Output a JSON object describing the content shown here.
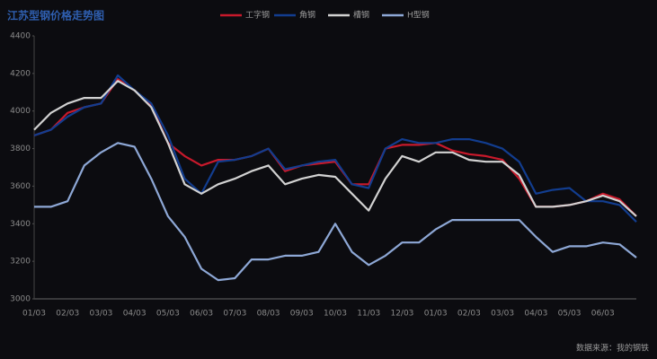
{
  "chart_data": {
    "type": "line",
    "title": "江苏型钢价格走势图",
    "source": "数据来源：我的钢铁",
    "categories": [
      "01/03",
      null,
      "02/03",
      null,
      "03/03",
      null,
      "04/03",
      null,
      "05/03",
      null,
      "06/03",
      null,
      "07/03",
      null,
      "08/03",
      null,
      "09/03",
      null,
      "10/03",
      null,
      "11/03",
      null,
      "12/03",
      null,
      "01/03",
      null,
      "02/03",
      null,
      "03/03",
      null,
      "04/03",
      null,
      "05/03",
      null,
      "06/03",
      null,
      null
    ],
    "series": [
      {
        "name": "工字钢",
        "color": "#c8192b",
        "values": [
          3870,
          3900,
          3990,
          4020,
          4040,
          4170,
          4110,
          4030,
          3830,
          3760,
          3710,
          3740,
          3740,
          3760,
          3800,
          3680,
          3710,
          3720,
          3730,
          3610,
          3610,
          3800,
          3820,
          3820,
          3830,
          3790,
          3770,
          3760,
          3740,
          3640,
          3490,
          3490,
          3500,
          3520,
          3560,
          3530,
          3440
        ]
      },
      {
        "name": "角钢",
        "color": "#123d8f",
        "values": [
          3870,
          3900,
          3970,
          4020,
          4040,
          4190,
          4110,
          4040,
          3870,
          3640,
          3560,
          3730,
          3740,
          3760,
          3800,
          3690,
          3710,
          3730,
          3740,
          3610,
          3590,
          3800,
          3850,
          3830,
          3830,
          3850,
          3850,
          3830,
          3800,
          3730,
          3560,
          3580,
          3590,
          3520,
          3520,
          3500,
          3410
        ]
      },
      {
        "name": "槽钢",
        "color": "#d2d2d2",
        "values": [
          3900,
          3990,
          4040,
          4070,
          4070,
          4160,
          4110,
          4020,
          3830,
          3610,
          3560,
          3610,
          3640,
          3680,
          3710,
          3610,
          3640,
          3660,
          3650,
          3560,
          3470,
          3640,
          3760,
          3730,
          3780,
          3780,
          3740,
          3730,
          3730,
          3660,
          3490,
          3490,
          3500,
          3520,
          3550,
          3520,
          3440
        ]
      },
      {
        "name": "H型钢",
        "color": "#8ea8d6",
        "values": [
          3490,
          3490,
          3520,
          3710,
          3780,
          3830,
          3810,
          3640,
          3440,
          3330,
          3160,
          3100,
          3110,
          3210,
          3210,
          3230,
          3230,
          3250,
          3400,
          3250,
          3180,
          3230,
          3300,
          3300,
          3370,
          3420,
          3420,
          3420,
          3420,
          3420,
          3330,
          3250,
          3280,
          3280,
          3300,
          3290,
          3220
        ]
      }
    ],
    "ylim": [
      3000,
      4400
    ],
    "yticks": [
      3000,
      3200,
      3400,
      3600,
      3800,
      4000,
      4200,
      4400
    ],
    "grid": false
  }
}
